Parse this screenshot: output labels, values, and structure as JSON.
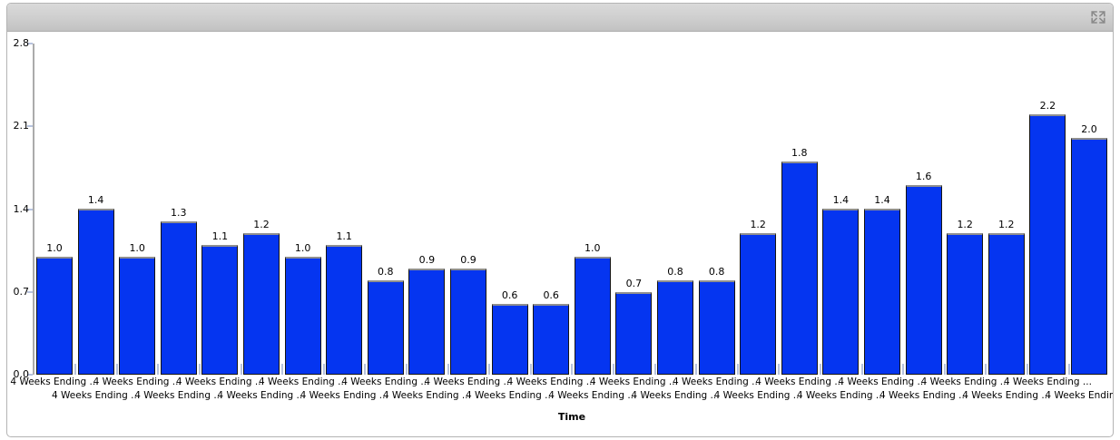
{
  "widget": {
    "header": {
      "maximize_icon": "maximize-icon"
    },
    "colors": {
      "header_top": "#dadada",
      "header_bottom": "#c2c2c2",
      "panel_border": "#b4b4b4"
    }
  },
  "chart_data": {
    "type": "bar",
    "title": "",
    "xlabel": "Time",
    "ylabel": "",
    "ylim": [
      0,
      2.8
    ],
    "yticks": [
      0,
      0.7,
      1.4,
      2.1,
      2.8
    ],
    "ytick_labels": [
      "0.0",
      "0.7",
      "1.4",
      "2.1",
      "2.8"
    ],
    "grid": "off",
    "legend": "none",
    "categories": [
      "4 Weeks Ending ...",
      "4 Weeks Ending ...",
      "4 Weeks Ending ...",
      "4 Weeks Ending ...",
      "4 Weeks Ending ...",
      "4 Weeks Ending ...",
      "4 Weeks Ending ...",
      "4 Weeks Ending ...",
      "4 Weeks Ending ...",
      "4 Weeks Ending ...",
      "4 Weeks Ending ...",
      "4 Weeks Ending ...",
      "4 Weeks Ending ...",
      "4 Weeks Ending ...",
      "4 Weeks Ending ...",
      "4 Weeks Ending ...",
      "4 Weeks Ending ...",
      "4 Weeks Ending ...",
      "4 Weeks Ending ...",
      "4 Weeks Ending ...",
      "4 Weeks Ending ...",
      "4 Weeks Ending ...",
      "4 Weeks Ending ...",
      "4 Weeks Ending ...",
      "4 Weeks Ending ...",
      "4 Weeks Ending ..."
    ],
    "values": [
      1.0,
      1.4,
      1.0,
      1.3,
      1.1,
      1.2,
      1.0,
      1.1,
      0.8,
      0.9,
      0.9,
      0.6,
      0.6,
      1.0,
      0.7,
      0.8,
      0.8,
      1.2,
      1.8,
      1.4,
      1.4,
      1.6,
      1.2,
      1.2,
      2.2,
      2.0
    ],
    "value_labels": [
      "1.0",
      "1.4",
      "1.0",
      "1.3",
      "1.1",
      "1.2",
      "1.0",
      "1.1",
      "0.8",
      "0.9",
      "0.9",
      "0.6",
      "0.6",
      "1.0",
      "0.7",
      "0.8",
      "0.8",
      "1.2",
      "1.8",
      "1.4",
      "1.4",
      "1.6",
      "1.2",
      "1.2",
      "2.2",
      "2.0"
    ],
    "colors": {
      "bar_fill": "#0535f0",
      "bar_border": "#141414",
      "bar_top_border": "#8f8f8f",
      "axis_line": "#ababab",
      "tick_mark": "#b7c3de",
      "text": "#000000"
    }
  }
}
